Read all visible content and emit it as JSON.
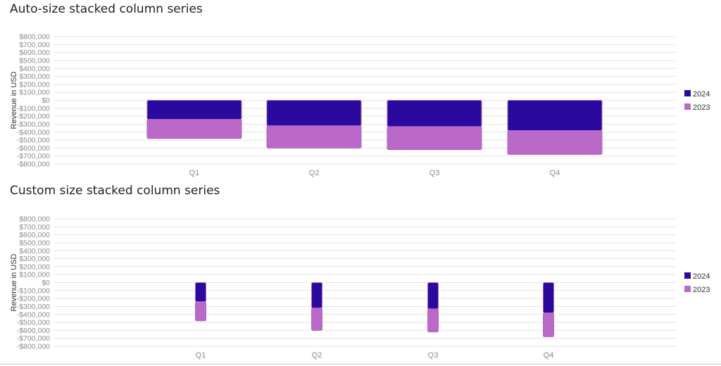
{
  "chart_data": [
    {
      "type": "bar",
      "stacked": true,
      "title": "Auto-size stacked column series",
      "ylabel": "Revenue in USD",
      "xlabel": "",
      "categories": [
        "Q1",
        "Q2",
        "Q3",
        "Q4"
      ],
      "ylim": [
        -800000,
        800000
      ],
      "yticks": [
        800000,
        700000,
        600000,
        500000,
        400000,
        300000,
        200000,
        100000,
        0,
        -100000,
        -200000,
        -300000,
        -400000,
        -500000,
        -600000,
        -700000,
        -800000
      ],
      "ytick_labels": [
        "$800,000",
        "$700,000",
        "$600,000",
        "$500,000",
        "$400,000",
        "$300,000",
        "$200,000",
        "$100,000",
        "$0",
        "-$100,000",
        "-$200,000",
        "-$300,000",
        "-$400,000",
        "-$500,000",
        "-$600,000",
        "-$700,000",
        "-$800,000"
      ],
      "grid": true,
      "legend_position": "right",
      "column_size": "auto",
      "series": [
        {
          "name": "2024",
          "color": "#2a0a9e",
          "values": [
            -240000,
            -320000,
            -330000,
            -380000
          ]
        },
        {
          "name": "2023",
          "color": "#bb69c9",
          "values": [
            -240000,
            -280000,
            -290000,
            -300000
          ]
        }
      ]
    },
    {
      "type": "bar",
      "stacked": true,
      "title": "Custom size stacked column series",
      "ylabel": "Revenue in USD",
      "xlabel": "",
      "categories": [
        "Q1",
        "Q2",
        "Q3",
        "Q4"
      ],
      "ylim": [
        -800000,
        800000
      ],
      "yticks": [
        800000,
        700000,
        600000,
        500000,
        400000,
        300000,
        200000,
        100000,
        0,
        -100000,
        -200000,
        -300000,
        -400000,
        -500000,
        -600000,
        -700000,
        -800000
      ],
      "ytick_labels": [
        "$800,000",
        "$700,000",
        "$600,000",
        "$500,000",
        "$400,000",
        "$300,000",
        "$200,000",
        "$100,000",
        "$0",
        "-$100,000",
        "-$200,000",
        "-$300,000",
        "-$400,000",
        "-$500,000",
        "-$600,000",
        "-$700,000",
        "-$800,000"
      ],
      "grid": true,
      "legend_position": "right",
      "column_size": "custom",
      "series": [
        {
          "name": "2024",
          "color": "#2a0a9e",
          "values": [
            -240000,
            -320000,
            -330000,
            -380000
          ]
        },
        {
          "name": "2023",
          "color": "#bb69c9",
          "values": [
            -240000,
            -280000,
            -290000,
            -300000
          ]
        }
      ]
    }
  ]
}
